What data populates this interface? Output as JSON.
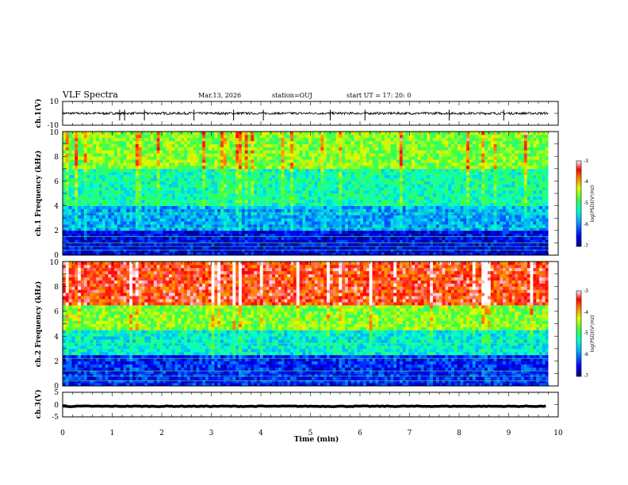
{
  "header": {
    "title": "VLF Spectra",
    "date": "Mar.13, 2026",
    "station": "station=OUJ",
    "start": "start  UT =   17: 20: 0"
  },
  "chart_data": [
    {
      "type": "line",
      "name": "ch1-waveform",
      "ylabel": "ch.1(V)",
      "ylim": [
        -10,
        10
      ],
      "yticks": [
        "10",
        "-10"
      ],
      "xlim": [
        0,
        10
      ],
      "baseline": 0,
      "noise_amplitude": 1,
      "spikes_min": [
        1.15,
        1.25,
        1.65,
        2.65,
        3.45,
        4.05,
        5.4,
        6.1,
        7.8,
        8.9
      ],
      "data_end_min": 9.8
    },
    {
      "type": "heatmap",
      "name": "ch1-spectrogram",
      "ylabel": "ch.1 Frequency (kHz)",
      "ylim": [
        0,
        10
      ],
      "yticks": [
        "0",
        "2",
        "4",
        "6",
        "8",
        "10"
      ],
      "xlim": [
        0,
        10
      ],
      "data_end_min": 9.8,
      "colorbar": {
        "label": "log(PSD)(V²/Hz)",
        "range": [
          -7,
          -3
        ],
        "ticks": [
          "-3",
          "-4",
          "-5",
          "-6",
          "-7"
        ]
      },
      "bands_khz": [
        {
          "from": 0,
          "to": 2,
          "level": -6.6
        },
        {
          "from": 2,
          "to": 4,
          "level": -5.8
        },
        {
          "from": 4,
          "to": 7,
          "level": -5.2
        },
        {
          "from": 7,
          "to": 10,
          "level": -4.6
        }
      ],
      "lines_khz": [
        0.4,
        0.7,
        1.0,
        1.5,
        2.2,
        3.4,
        6.0
      ]
    },
    {
      "type": "heatmap",
      "name": "ch2-spectrogram",
      "ylabel": "ch.2 Frequency (kHz)",
      "ylim": [
        0,
        10
      ],
      "yticks": [
        "0",
        "2",
        "4",
        "6",
        "8",
        "10"
      ],
      "xlim": [
        0,
        10
      ],
      "data_end_min": 9.8,
      "colorbar": {
        "label": "log(PSD)(V²/Hz)",
        "range": [
          -7,
          -3
        ],
        "ticks": [
          "-3",
          "-4",
          "-5",
          "-6",
          "-7"
        ]
      },
      "bands_khz": [
        {
          "from": 0,
          "to": 2.5,
          "level": -6.4
        },
        {
          "from": 2.5,
          "to": 4.5,
          "level": -5.4
        },
        {
          "from": 4.5,
          "to": 6.5,
          "level": -4.6
        },
        {
          "from": 6.5,
          "to": 10,
          "level": -3.5
        }
      ],
      "lines_khz": [
        0.4,
        0.8,
        1.2,
        2.2,
        3.4
      ]
    },
    {
      "type": "line",
      "name": "ch3-waveform",
      "ylabel": "ch.3(V)",
      "ylim": [
        -5,
        5
      ],
      "yticks": [
        "5",
        "0",
        "-5"
      ],
      "xlim": [
        0,
        10
      ],
      "baseline": -0.7,
      "noise_amplitude": 0.3,
      "data_end_min": 9.8
    }
  ],
  "xaxis": {
    "label": "Time  (min)",
    "ticks": [
      "0",
      "1",
      "2",
      "3",
      "4",
      "5",
      "6",
      "7",
      "8",
      "9",
      "10"
    ]
  }
}
